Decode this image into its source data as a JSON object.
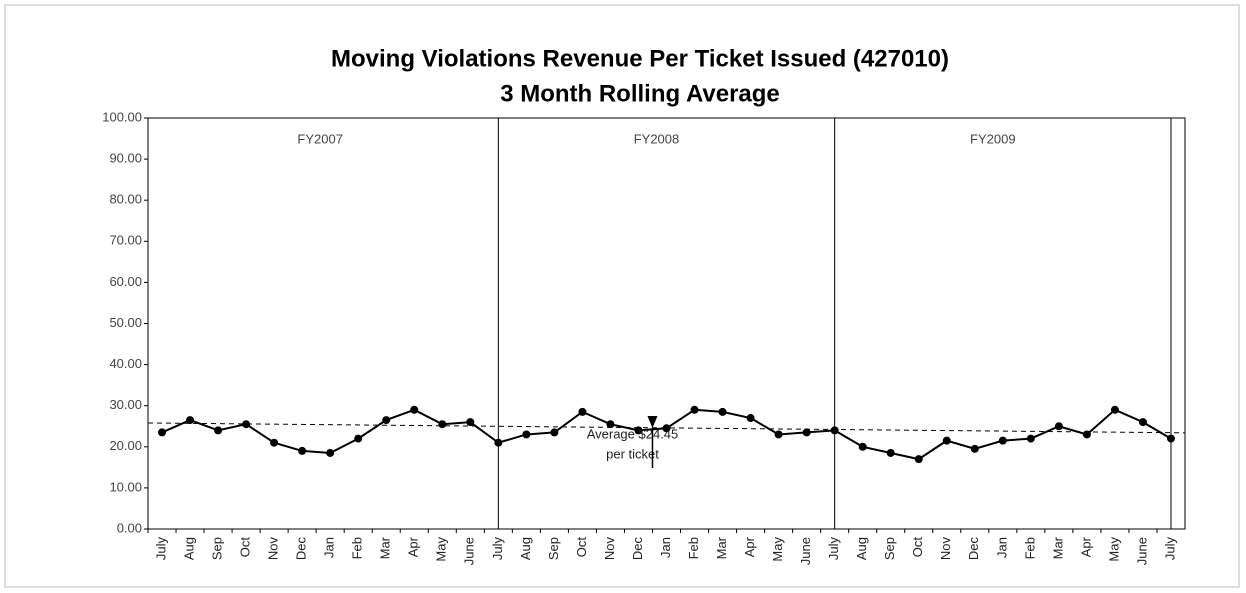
{
  "chart_data": {
    "type": "line",
    "title": "Moving Violations Revenue Per Ticket Issued (427010)",
    "subtitle": "3 Month Rolling Average",
    "categories": [
      "July",
      "Aug",
      "Sep",
      "Oct",
      "Nov",
      "Dec",
      "Jan",
      "Feb",
      "Mar",
      "Apr",
      "May",
      "June",
      "July",
      "Aug",
      "Sep",
      "Oct",
      "Nov",
      "Dec",
      "Jan",
      "Feb",
      "Mar",
      "Apr",
      "May",
      "June",
      "July",
      "Aug",
      "Sep",
      "Oct",
      "Nov",
      "Dec",
      "Jan",
      "Feb",
      "Mar",
      "Apr",
      "May",
      "June",
      "July"
    ],
    "series": [
      {
        "color": "#000000",
        "values": [
          23.5,
          26.5,
          24,
          25.5,
          21,
          19,
          18.5,
          22,
          26.5,
          29,
          25.5,
          26,
          21,
          23,
          23.5,
          28.5,
          25.5,
          24,
          24.5,
          29,
          28.5,
          27,
          23,
          23.5,
          24,
          20,
          18.5,
          17,
          21.5,
          19.5,
          21.5,
          22,
          25,
          23,
          29,
          26,
          22
        ]
      }
    ],
    "trend_line": [
      25.8,
      23.4
    ],
    "periods": [
      {
        "label": "FY2007",
        "start_category": 0
      },
      {
        "label": "FY2008",
        "start_category": 12
      },
      {
        "label": "FY2009",
        "start_category": 24
      },
      {
        "start_category": 36
      }
    ],
    "annotation": [
      "Average $24.45",
      "per ticket"
    ],
    "annotation_category": 17.5,
    "ylim": [
      0,
      100
    ],
    "yticks": [
      {
        "value": 0,
        "label": "0.00"
      },
      {
        "value": 10,
        "label": "10.00"
      },
      {
        "value": 20,
        "label": "20.00"
      },
      {
        "value": 30,
        "label": "30.00"
      },
      {
        "value": 40,
        "label": "40.00"
      },
      {
        "value": 50,
        "label": "50.00"
      },
      {
        "value": 60,
        "label": "60.00"
      },
      {
        "value": 70,
        "label": "70.00"
      },
      {
        "value": 80,
        "label": "80.00"
      },
      {
        "value": 90,
        "label": "90.00"
      },
      {
        "value": 100,
        "label": "100.00"
      }
    ]
  }
}
